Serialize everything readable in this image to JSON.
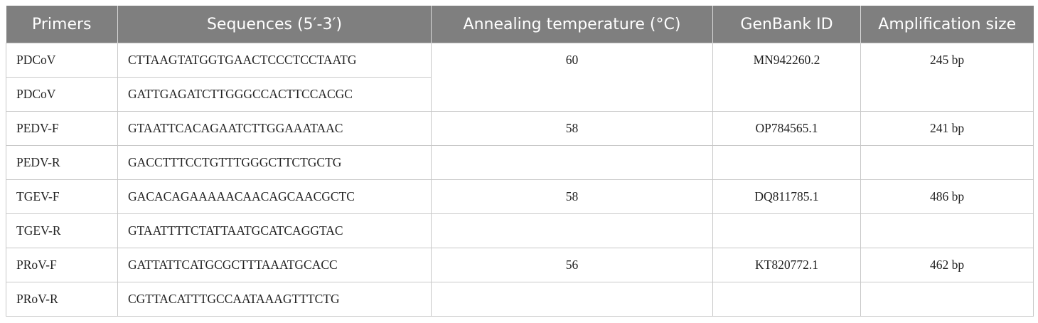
{
  "table": {
    "header": [
      "Primers",
      "Sequences (5′-3′)",
      "Annealing temperature (°C)",
      "GenBank ID",
      "Amplification size"
    ],
    "rows": [
      {
        "primer": "PDCoV",
        "sequence": "CTTAAGTATGGTGAACTCCCTCCTAATG",
        "annealing": 60,
        "genbank": "MN942260.2",
        "size": "245 bp"
      },
      {
        "primer": "PDCoV",
        "sequence": "GATTGAGATCTTGGGCCACTTCCACGC"
      },
      {
        "primer": "PEDV-F",
        "sequence": "GTAATTCACAGAATCTTGGAAATAAC",
        "annealing": 58,
        "genbank": "OP784565.1",
        "size": "241 bp"
      },
      {
        "primer": "PEDV-R",
        "sequence": "GACCTTTCCTGTTTGGGCTTCTGCTG"
      },
      {
        "primer": "TGEV-F",
        "sequence": "GACACAGAAAAACAACAGCAACGCTC",
        "annealing": 58,
        "genbank": "DQ811785.1",
        "size": "486 bp"
      },
      {
        "primer": "TGEV-R",
        "sequence": "GTAATTTTCTATTAATGCATCAGGTAC"
      },
      {
        "primer": "PRoV-F",
        "sequence": "GATTATTCATGCGCTTTAAATGCACC",
        "annealing": 56,
        "genbank": "KT820772.1",
        "size": "462 bp"
      },
      {
        "primer": "PRoV-R",
        "sequence": "CGTTACATTTGCCAATAAAGTTTCTG"
      }
    ]
  }
}
